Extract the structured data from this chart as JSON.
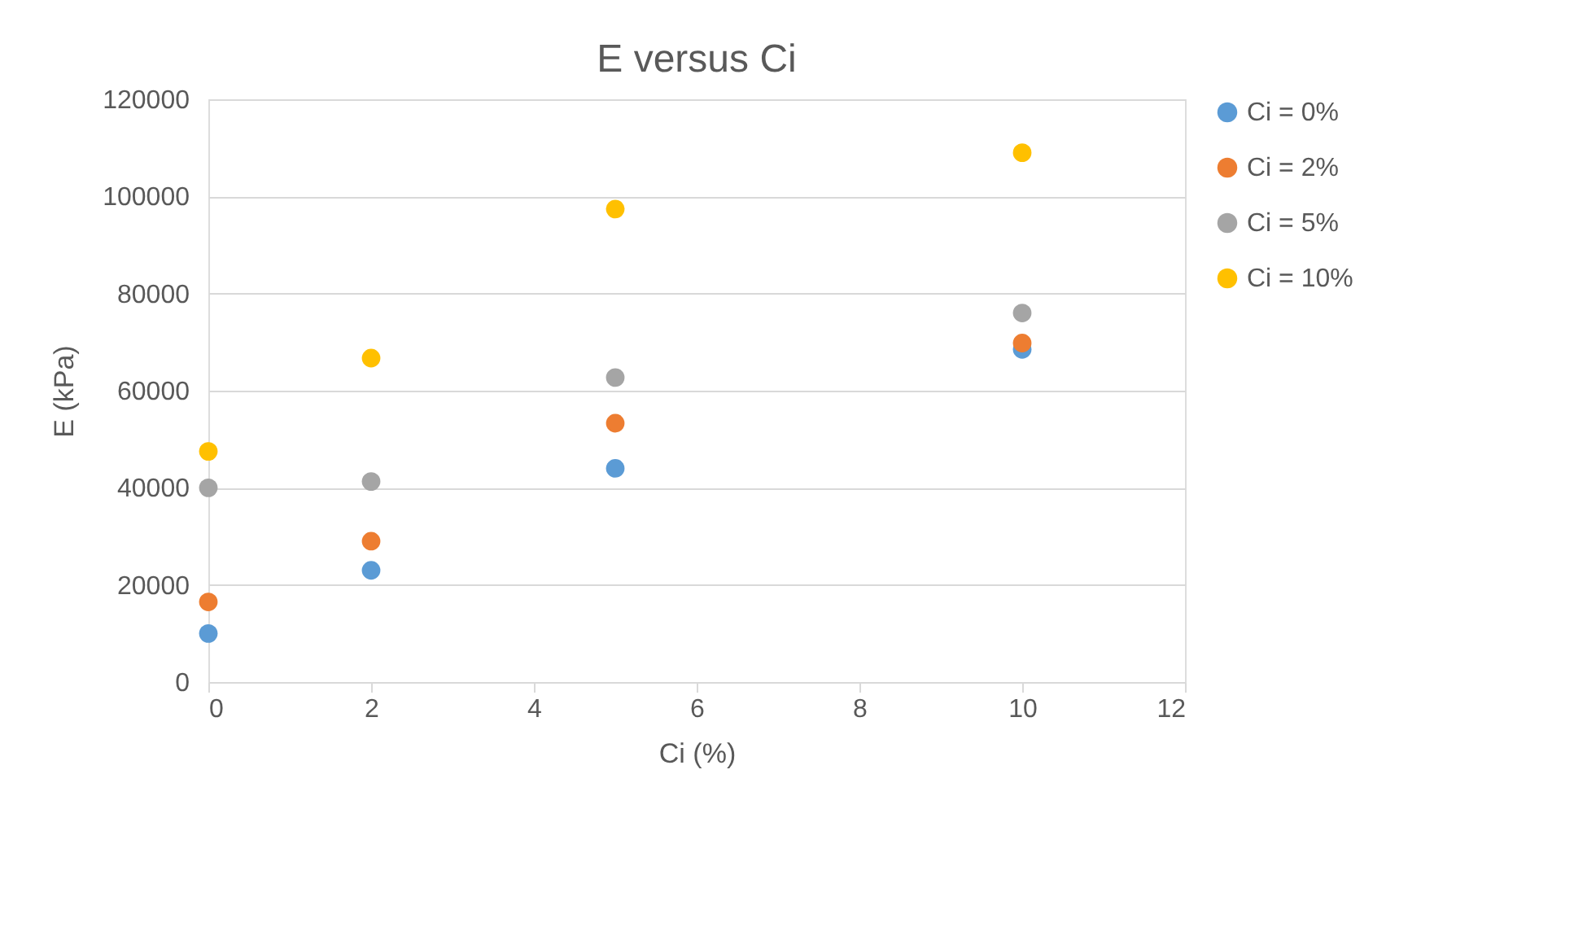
{
  "chart_data": {
    "type": "scatter",
    "title": "E versus Ci",
    "xlabel": "Ci (%)",
    "ylabel": "E (kPa)",
    "x": [
      0,
      2,
      5,
      10
    ],
    "series": [
      {
        "name": "Ci = 0%",
        "color": "#5b9bd5",
        "values": [
          10000,
          23000,
          44000,
          68500
        ]
      },
      {
        "name": "Ci = 2%",
        "color": "#ed7d31",
        "values": [
          16500,
          29000,
          53300,
          69800
        ]
      },
      {
        "name": "Ci = 5%",
        "color": "#a5a5a5",
        "values": [
          40000,
          41300,
          62700,
          76000
        ]
      },
      {
        "name": "Ci = 10%",
        "color": "#ffc000",
        "values": [
          47500,
          66700,
          97400,
          109000
        ]
      }
    ],
    "xlim": [
      0,
      12
    ],
    "xticks": [
      0,
      2,
      4,
      6,
      8,
      10,
      12
    ],
    "ylim": [
      0,
      120000
    ],
    "yticks": [
      0,
      20000,
      40000,
      60000,
      80000,
      100000,
      120000
    ],
    "grid": "y",
    "legend": "right",
    "marker": "circle"
  }
}
